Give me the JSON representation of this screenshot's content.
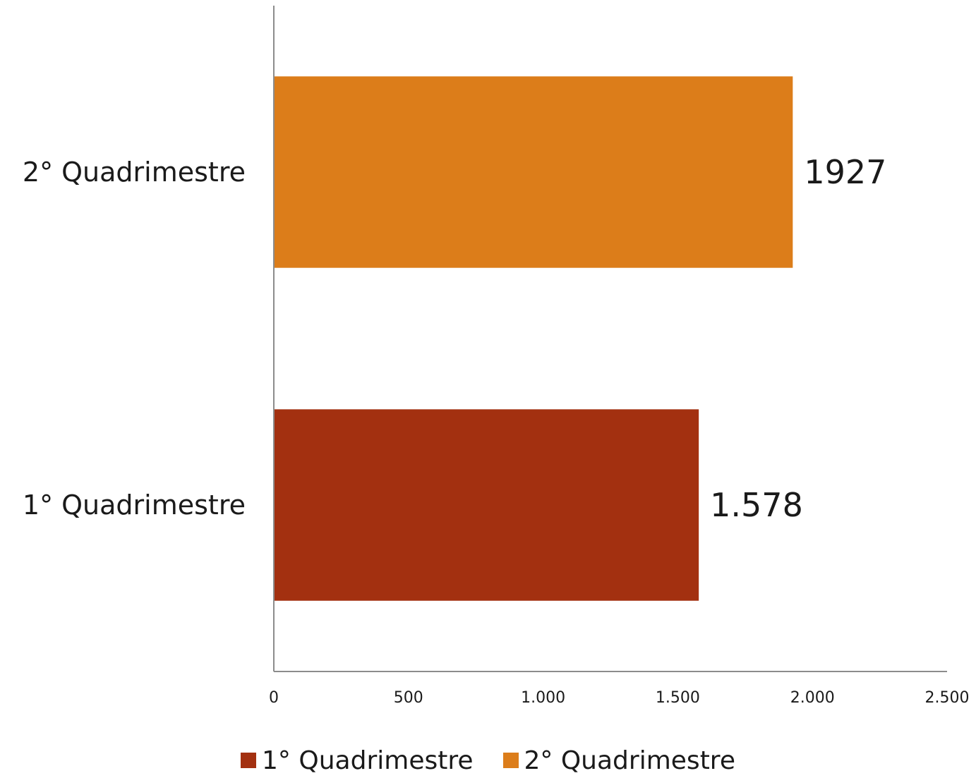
{
  "chart_data": {
    "type": "bar",
    "orientation": "horizontal",
    "categories": [
      "2° Quadrimestre",
      "1° Quadrimestre"
    ],
    "series": [
      {
        "name": "2° Quadrimestre",
        "category": "2° Quadrimestre",
        "value": 1927,
        "label": "1927",
        "color": "#DC7D1A"
      },
      {
        "name": "1° Quadrimestre",
        "category": "1° Quadrimestre",
        "value": 1578,
        "label": "1.578",
        "color": "#A33010"
      }
    ],
    "xlim": [
      0,
      2500
    ],
    "x_ticks": [
      0,
      500,
      1000,
      1500,
      2000,
      2500
    ],
    "x_tick_labels": [
      "0",
      "500",
      "1.000",
      "1.500",
      "2.000",
      "2.500"
    ],
    "title": "",
    "xlabel": "",
    "ylabel": "",
    "grid": false,
    "legend_position": "bottom"
  },
  "legend": {
    "items": [
      {
        "label": "1° Quadrimestre",
        "color": "#A33010"
      },
      {
        "label": "2° Quadrimestre",
        "color": "#DC7D1A"
      }
    ]
  }
}
